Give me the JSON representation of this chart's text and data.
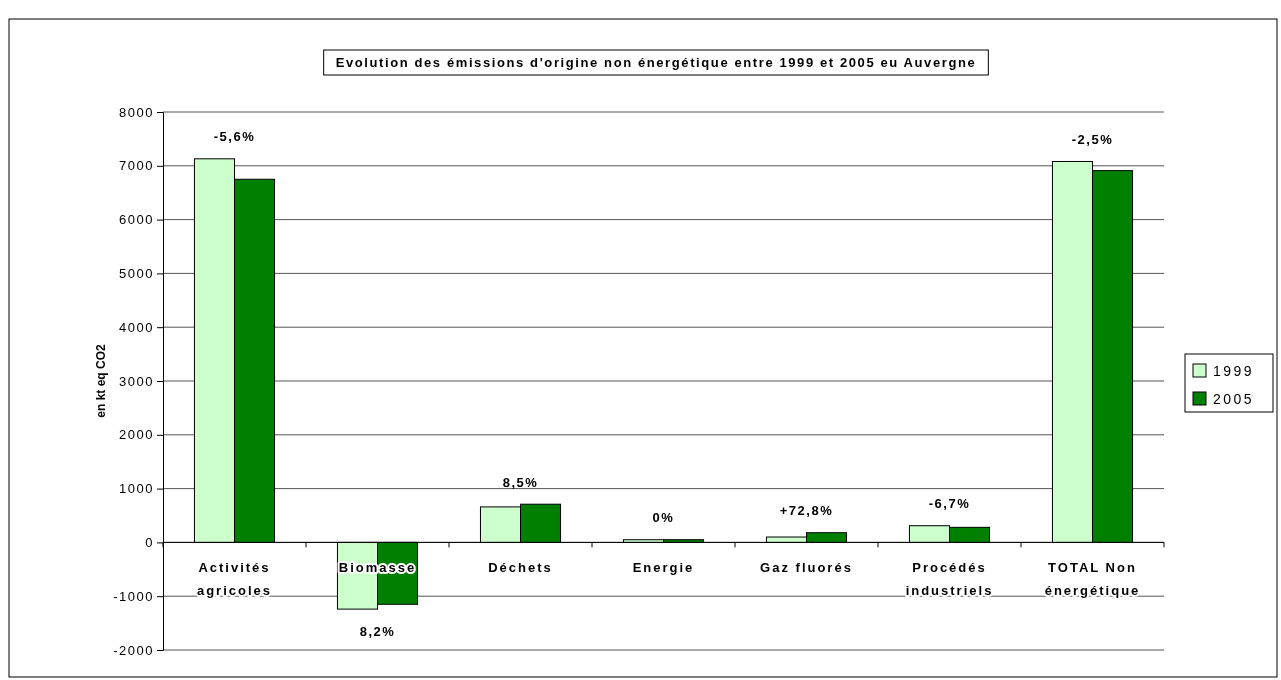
{
  "chart_data": {
    "type": "bar",
    "title": "Evolution des émissions d'origine non énergétique entre 1999 et 2005 eu Auvergne",
    "ylabel": "en kt eq CO2",
    "categories": [
      "Activités\nagricoles",
      "Biomasse",
      "Déchets",
      "Energie",
      "Gaz fluorés",
      "Procédés\nindustriels",
      "TOTAL Non\nénergétique"
    ],
    "series": [
      {
        "name": "1999",
        "color": "#ccffcc",
        "values": [
          7130,
          -1240,
          660,
          50,
          100,
          310,
          7080
        ]
      },
      {
        "name": "2005",
        "color": "#008000",
        "values": [
          6750,
          -1150,
          710,
          50,
          180,
          280,
          6910
        ]
      }
    ],
    "ylim": [
      -2000,
      8000
    ],
    "yticks": [
      -2000,
      -1000,
      0,
      1000,
      2000,
      3000,
      4000,
      5000,
      6000,
      7000,
      8000
    ],
    "grid": "y",
    "legend": "right",
    "annotations": [
      {
        "text": "-5,6%",
        "x": "Activités\nagricoles",
        "y": 7130
      },
      {
        "text": "8,2%",
        "x": "Biomasse",
        "y": -1240
      },
      {
        "text": "8,5%",
        "x": "Déchets",
        "y": 710
      },
      {
        "text": "0%",
        "x": "Energie",
        "y": 50
      },
      {
        "text": "+72,8%",
        "x": "Gaz fluorés",
        "y": 180
      },
      {
        "text": "-6,7%",
        "x": "Procédés\nindustriels",
        "y": 310
      },
      {
        "text": "-2,5%",
        "x": "TOTAL Non\nénergétique",
        "y": 7080
      }
    ]
  }
}
